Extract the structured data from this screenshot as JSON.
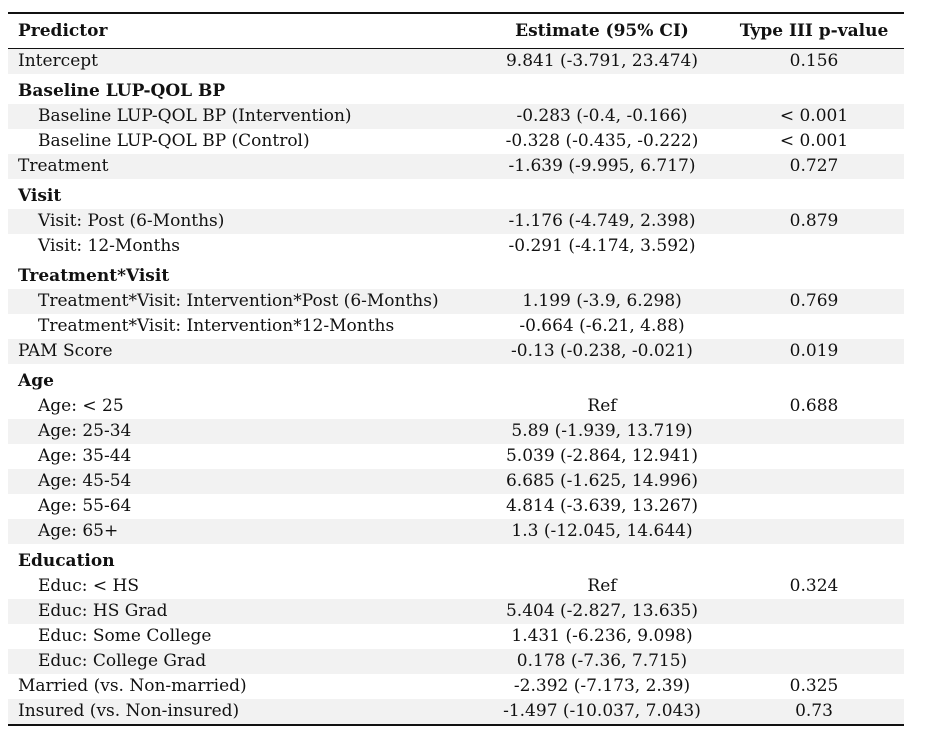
{
  "header": {
    "predictor": "Predictor",
    "estimate": "Estimate (95% CI)",
    "pvalue": "Type III p-value"
  },
  "rows": [
    {
      "type": "row",
      "label": "Intercept",
      "estimate": "9.841 (-3.791, 23.474)",
      "p": "0.156",
      "indent": false,
      "shaded": true
    },
    {
      "type": "group",
      "label": "Baseline LUP-QOL BP"
    },
    {
      "type": "row",
      "label": "Baseline LUP-QOL BP (Intervention)",
      "estimate": "-0.283 (-0.4, -0.166)",
      "p": "< 0.001",
      "indent": true,
      "shaded": true
    },
    {
      "type": "row",
      "label": "Baseline LUP-QOL BP (Control)",
      "estimate": "-0.328 (-0.435, -0.222)",
      "p": "< 0.001",
      "indent": true,
      "shaded": false
    },
    {
      "type": "row",
      "label": "Treatment",
      "estimate": "-1.639 (-9.995, 6.717)",
      "p": "0.727",
      "indent": false,
      "shaded": true
    },
    {
      "type": "group",
      "label": "Visit"
    },
    {
      "type": "row",
      "label": "Visit: Post (6-Months)",
      "estimate": "-1.176 (-4.749, 2.398)",
      "p": "0.879",
      "indent": true,
      "shaded": true
    },
    {
      "type": "row",
      "label": "Visit: 12-Months",
      "estimate": "-0.291 (-4.174, 3.592)",
      "p": "",
      "indent": true,
      "shaded": false
    },
    {
      "type": "group",
      "label": "Treatment*Visit"
    },
    {
      "type": "row",
      "label": "Treatment*Visit: Intervention*Post (6-Months)",
      "estimate": "1.199 (-3.9, 6.298)",
      "p": "0.769",
      "indent": true,
      "shaded": true
    },
    {
      "type": "row",
      "label": "Treatment*Visit: Intervention*12-Months",
      "estimate": "-0.664 (-6.21, 4.88)",
      "p": "",
      "indent": true,
      "shaded": false
    },
    {
      "type": "row",
      "label": "PAM Score",
      "estimate": "-0.13 (-0.238, -0.021)",
      "p": "0.019",
      "indent": false,
      "shaded": true
    },
    {
      "type": "group",
      "label": "Age"
    },
    {
      "type": "row",
      "label": "Age: < 25",
      "estimate": "Ref",
      "p": "0.688",
      "indent": true,
      "shaded": false
    },
    {
      "type": "row",
      "label": "Age: 25-34",
      "estimate": "5.89 (-1.939, 13.719)",
      "p": "",
      "indent": true,
      "shaded": true
    },
    {
      "type": "row",
      "label": "Age: 35-44",
      "estimate": "5.039 (-2.864, 12.941)",
      "p": "",
      "indent": true,
      "shaded": false
    },
    {
      "type": "row",
      "label": "Age: 45-54",
      "estimate": "6.685 (-1.625, 14.996)",
      "p": "",
      "indent": true,
      "shaded": true
    },
    {
      "type": "row",
      "label": "Age: 55-64",
      "estimate": "4.814 (-3.639, 13.267)",
      "p": "",
      "indent": true,
      "shaded": false
    },
    {
      "type": "row",
      "label": "Age: 65+",
      "estimate": "1.3 (-12.045, 14.644)",
      "p": "",
      "indent": true,
      "shaded": true
    },
    {
      "type": "group",
      "label": "Education"
    },
    {
      "type": "row",
      "label": "Educ: < HS",
      "estimate": "Ref",
      "p": "0.324",
      "indent": true,
      "shaded": false
    },
    {
      "type": "row",
      "label": "Educ: HS Grad",
      "estimate": "5.404 (-2.827, 13.635)",
      "p": "",
      "indent": true,
      "shaded": true
    },
    {
      "type": "row",
      "label": "Educ: Some College",
      "estimate": "1.431 (-6.236, 9.098)",
      "p": "",
      "indent": true,
      "shaded": false
    },
    {
      "type": "row",
      "label": "Educ: College Grad",
      "estimate": "0.178 (-7.36, 7.715)",
      "p": "",
      "indent": true,
      "shaded": true
    },
    {
      "type": "row",
      "label": "Married (vs. Non-married)",
      "estimate": "-2.392 (-7.173, 2.39)",
      "p": "0.325",
      "indent": false,
      "shaded": false
    },
    {
      "type": "row",
      "label": "Insured (vs. Non-insured)",
      "estimate": "-1.497 (-10.037, 7.043)",
      "p": "0.73",
      "indent": false,
      "shaded": true
    }
  ]
}
